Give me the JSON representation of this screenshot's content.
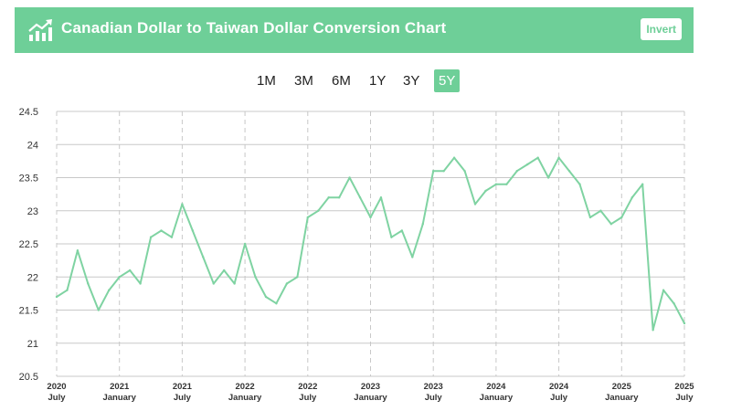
{
  "header": {
    "title": "Canadian Dollar to Taiwan Dollar Conversion Chart",
    "invert_label": "Invert"
  },
  "tabs": [
    {
      "label": "1M",
      "active": false
    },
    {
      "label": "3M",
      "active": false
    },
    {
      "label": "6M",
      "active": false
    },
    {
      "label": "1Y",
      "active": false
    },
    {
      "label": "3Y",
      "active": false
    },
    {
      "label": "5Y",
      "active": true
    }
  ],
  "colors": {
    "accent": "#6ecf98",
    "line": "#7fd3a2",
    "grid": "#c8c8c8"
  },
  "chart_data": {
    "type": "line",
    "ylim": [
      20.5,
      24.5
    ],
    "y_ticks": [
      "20.5",
      "21",
      "21.5",
      "22",
      "22.5",
      "23",
      "23.5",
      "24",
      "24.5"
    ],
    "x_ticks": [
      {
        "year": "2020",
        "month": "July"
      },
      {
        "year": "2021",
        "month": "January"
      },
      {
        "year": "2021",
        "month": "July"
      },
      {
        "year": "2022",
        "month": "January"
      },
      {
        "year": "2022",
        "month": "July"
      },
      {
        "year": "2023",
        "month": "January"
      },
      {
        "year": "2023",
        "month": "July"
      },
      {
        "year": "2024",
        "month": "January"
      },
      {
        "year": "2024",
        "month": "July"
      },
      {
        "year": "2025",
        "month": "January"
      },
      {
        "year": "2025",
        "month": "July"
      }
    ],
    "grid": true,
    "series": [
      {
        "x": [
          "2020-07",
          "2020-08",
          "2020-09",
          "2020-10",
          "2020-11",
          "2020-12",
          "2021-01",
          "2021-02",
          "2021-03",
          "2021-04",
          "2021-05",
          "2021-06",
          "2021-07",
          "2021-08",
          "2021-09",
          "2021-10",
          "2021-11",
          "2021-12",
          "2022-01",
          "2022-02",
          "2022-03",
          "2022-04",
          "2022-05",
          "2022-06",
          "2022-07",
          "2022-08",
          "2022-09",
          "2022-10",
          "2022-11",
          "2022-12",
          "2023-01",
          "2023-02",
          "2023-03",
          "2023-04",
          "2023-05",
          "2023-06",
          "2023-07",
          "2023-08",
          "2023-09",
          "2023-10",
          "2023-11",
          "2023-12",
          "2024-01",
          "2024-02",
          "2024-03",
          "2024-04",
          "2024-05",
          "2024-06",
          "2024-07",
          "2024-08",
          "2024-09",
          "2024-10",
          "2024-11",
          "2024-12",
          "2025-01",
          "2025-02",
          "2025-03",
          "2025-04",
          "2025-05",
          "2025-06",
          "2025-07"
        ],
        "values": [
          21.7,
          21.8,
          22.4,
          21.9,
          21.5,
          21.8,
          22.0,
          22.1,
          21.9,
          22.6,
          22.7,
          22.6,
          23.1,
          22.7,
          22.3,
          21.9,
          22.1,
          21.9,
          22.5,
          22.0,
          21.7,
          21.6,
          21.9,
          22.0,
          22.9,
          23.0,
          23.2,
          23.2,
          23.5,
          23.2,
          22.9,
          23.2,
          22.6,
          22.7,
          22.3,
          22.8,
          23.6,
          23.6,
          23.8,
          23.6,
          23.1,
          23.3,
          23.4,
          23.4,
          23.6,
          23.7,
          23.8,
          23.5,
          23.8,
          23.6,
          23.4,
          22.9,
          23.0,
          22.8,
          22.9,
          23.2,
          23.4,
          21.2,
          21.8,
          21.6,
          21.3
        ]
      }
    ]
  }
}
